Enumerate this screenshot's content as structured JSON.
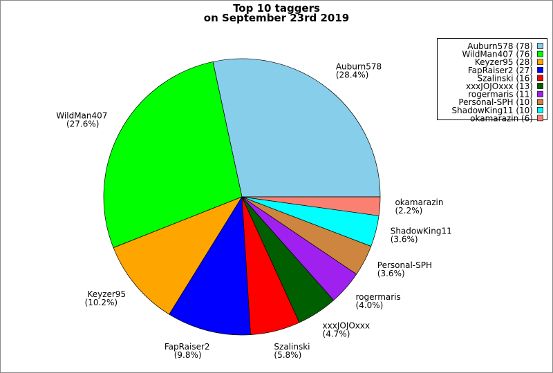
{
  "chart_data": {
    "type": "pie",
    "title": [
      "Top 10 taggers",
      "on September 23rd 2019"
    ],
    "categories": [
      "Auburn578",
      "WildMan407",
      "Keyzer95",
      "FapRaiser2",
      "Szalinski",
      "xxxJOJOxxx",
      "rogermaris",
      "Personal-SPH",
      "ShadowKing11",
      "okamarazin"
    ],
    "values": [
      78,
      76,
      28,
      27,
      16,
      13,
      11,
      10,
      10,
      6
    ],
    "value_labels": [
      "(28.4%)",
      "(27.6%)",
      "(10.2%)",
      "(9.8%)",
      "(5.8%)",
      "(4.7%)",
      "(4.0%)",
      "(3.6%)",
      "(3.6%)",
      "(2.2%)"
    ],
    "legend_labels": [
      "Auburn578 (78)",
      "WildMan407 (76)",
      "Keyzer95 (28)",
      "FapRaiser2 (27)",
      "Szalinski (16)",
      "xxxJOJOxxx (13)",
      "rogermaris (11)",
      "Personal-SPH (10)",
      "ShadowKing11 (10)",
      "okamarazin (6)"
    ],
    "colors": [
      "#87ceeb",
      "#00ff00",
      "#ffa500",
      "#0000ff",
      "#ff0000",
      "#005f00",
      "#a020f0",
      "#cd853f",
      "#00ffff",
      "#fa8072"
    ],
    "legend": "upper right"
  }
}
